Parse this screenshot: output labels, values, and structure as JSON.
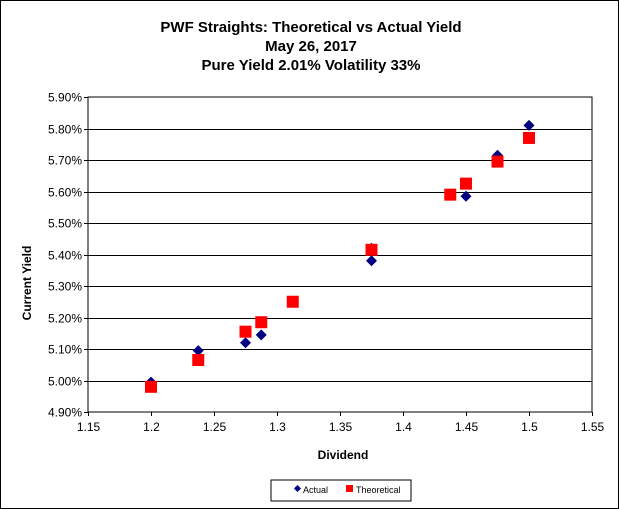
{
  "chart_data": {
    "type": "scatter",
    "title": [
      "PWF Straights: Theoretical vs Actual Yield",
      "May 26, 2017",
      "Pure Yield 2.01% Volatility 33%"
    ],
    "xlabel": "Dividend",
    "ylabel": "Current Yield",
    "xlim": [
      1.15,
      1.55
    ],
    "ylim": [
      4.9,
      5.9
    ],
    "x_ticks": [
      1.15,
      1.2,
      1.25,
      1.3,
      1.35,
      1.4,
      1.45,
      1.5,
      1.55
    ],
    "x_tick_labels": [
      "1.15",
      "1.2",
      "1.25",
      "1.3",
      "1.35",
      "1.4",
      "1.45",
      "1.5",
      "1.55"
    ],
    "y_ticks": [
      4.9,
      5.0,
      5.1,
      5.2,
      5.3,
      5.4,
      5.5,
      5.6,
      5.7,
      5.8,
      5.9
    ],
    "y_tick_labels": [
      "4.90%",
      "5.00%",
      "5.10%",
      "5.20%",
      "5.30%",
      "5.40%",
      "5.50%",
      "5.60%",
      "5.70%",
      "5.80%",
      "5.90%"
    ],
    "grid": "horizontal",
    "legend_position": "bottom",
    "series": [
      {
        "name": "Actual",
        "marker": "diamond",
        "color": "#000080",
        "points": [
          [
            1.2,
            4.995
          ],
          [
            1.2375,
            5.095
          ],
          [
            1.275,
            5.12
          ],
          [
            1.2875,
            5.145
          ],
          [
            1.3125,
            5.25
          ],
          [
            1.375,
            5.42
          ],
          [
            1.375,
            5.38
          ],
          [
            1.45,
            5.585
          ],
          [
            1.475,
            5.715
          ],
          [
            1.5,
            5.81
          ]
        ]
      },
      {
        "name": "Theoretical",
        "marker": "square",
        "color": "#ff0000",
        "points": [
          [
            1.2,
            4.98
          ],
          [
            1.2375,
            5.065
          ],
          [
            1.275,
            5.155
          ],
          [
            1.2875,
            5.185
          ],
          [
            1.3125,
            5.25
          ],
          [
            1.375,
            5.415
          ],
          [
            1.4375,
            5.59
          ],
          [
            1.45,
            5.625
          ],
          [
            1.475,
            5.695
          ],
          [
            1.5,
            5.77
          ]
        ]
      }
    ]
  }
}
